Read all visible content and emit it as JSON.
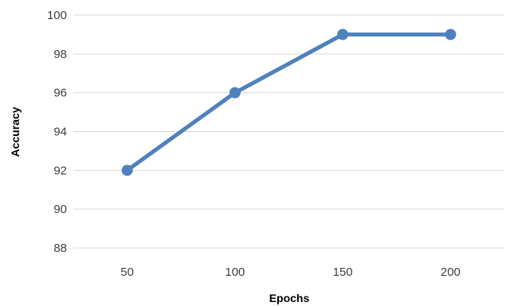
{
  "chart_data": {
    "type": "line",
    "title": "",
    "xlabel": "Epochs",
    "ylabel": "Accuracy",
    "categories": [
      "50",
      "100",
      "150",
      "200"
    ],
    "series": [
      {
        "values": [
          92,
          96,
          99,
          99
        ],
        "color": "#4f81bd"
      }
    ],
    "ylim": [
      88,
      100
    ],
    "yticks": [
      88,
      90,
      92,
      94,
      96,
      98,
      100
    ],
    "grid": true,
    "legend": "none",
    "marker": "circle"
  }
}
